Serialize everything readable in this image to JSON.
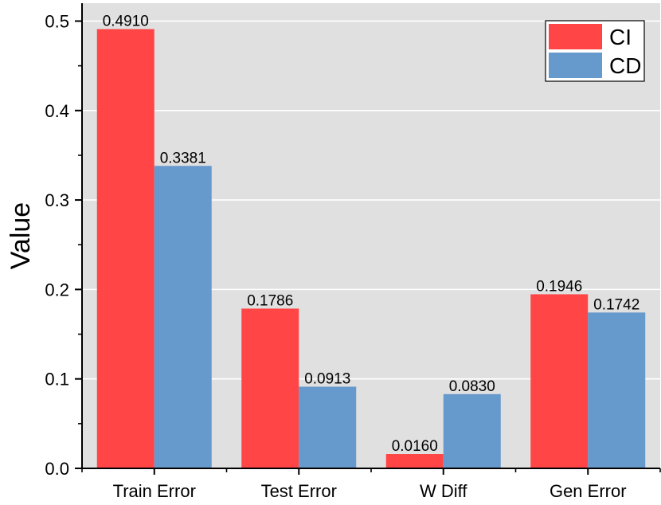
{
  "chart_data": {
    "type": "bar",
    "categories": [
      "Train Error",
      "Test Error",
      "W Diff",
      "Gen Error"
    ],
    "series": [
      {
        "name": "CI",
        "color": "#FF4545",
        "values": [
          0.491,
          0.1786,
          0.016,
          0.1946
        ],
        "labels": [
          "0.4910",
          "0.1786",
          "0.0160",
          "0.1946"
        ]
      },
      {
        "name": "CD",
        "color": "#6699CC",
        "values": [
          0.3381,
          0.0913,
          0.083,
          0.1742
        ],
        "labels": [
          "0.3381",
          "0.0913",
          "0.0830",
          "0.1742"
        ]
      }
    ],
    "title": "",
    "xlabel": "",
    "ylabel": "Value",
    "ylim": [
      0,
      0.52
    ],
    "yticks": [
      0.0,
      0.1,
      0.2,
      0.3,
      0.4,
      0.5
    ],
    "ytick_labels": [
      "0.0",
      "0.1",
      "0.2",
      "0.3",
      "0.4",
      "0.5"
    ],
    "grid": true,
    "grid_axis": "y",
    "legend_position": "top-right",
    "plot_background": "#E0E0E0",
    "grid_color": "#FFFFFF"
  }
}
